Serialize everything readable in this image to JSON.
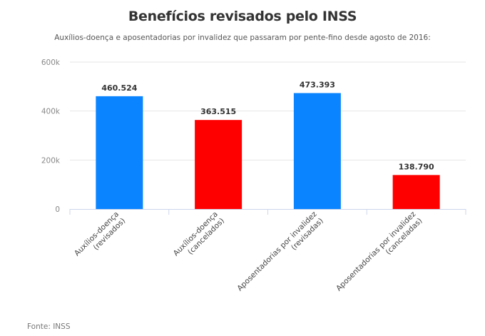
{
  "chart_data": {
    "type": "bar",
    "title": "Benefícios revisados pelo INSS",
    "subtitle": "Auxílios-doença e aposentadorias por invalidez que passaram por pente-fino desde agosto de 2016:",
    "categories": [
      [
        "Auxílios-doença",
        "(revisados)"
      ],
      [
        "Auxílios-doença",
        "(cancelados)"
      ],
      [
        "Aposentadorias por invalidez",
        "(revisadas)"
      ],
      [
        "Aposentadorias por invalidez",
        "(canceladas)"
      ]
    ],
    "values": [
      460524,
      363515,
      473393,
      138790
    ],
    "data_labels": [
      "460.524",
      "363.515",
      "473.393",
      "138.790"
    ],
    "colors": [
      "#0a84ff",
      "#ff0000",
      "#0a84ff",
      "#ff0000"
    ],
    "xlabel": "",
    "ylabel": "",
    "ylim": [
      0,
      600000
    ],
    "yticks": [
      0,
      200000,
      400000,
      600000
    ],
    "ytick_labels": [
      "0",
      "200k",
      "400k",
      "600k"
    ],
    "grid": true,
    "legend": "none",
    "source": "Fonte: INSS"
  }
}
